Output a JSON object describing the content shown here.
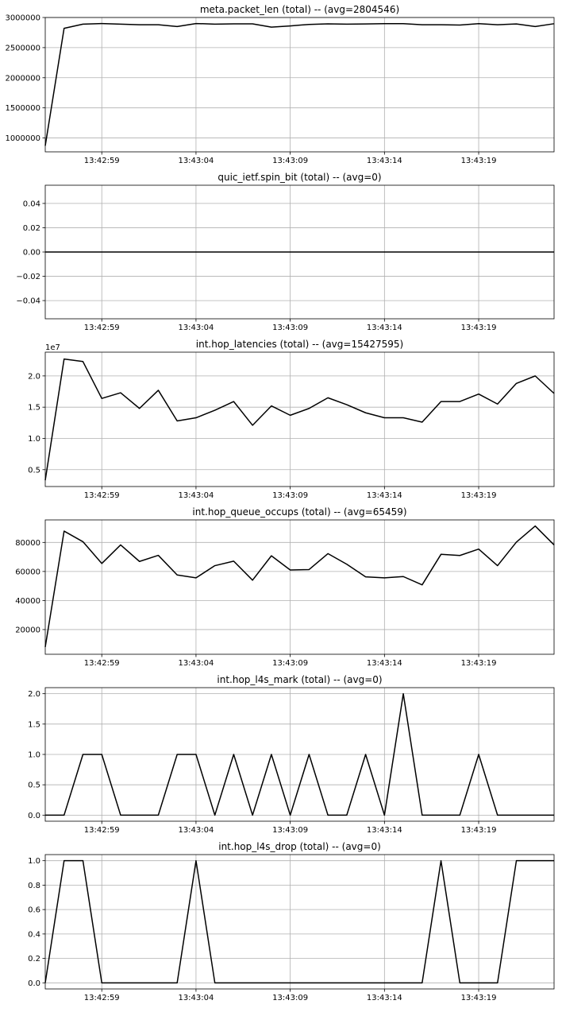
{
  "chart_data": [
    {
      "type": "line",
      "title": "meta.packet_len (total) -- (avg=2804546)",
      "x": [
        "13:42:56",
        "13:42:57",
        "13:42:58",
        "13:42:59",
        "13:43:00",
        "13:43:01",
        "13:43:02",
        "13:43:03",
        "13:43:04",
        "13:43:05",
        "13:43:06",
        "13:43:07",
        "13:43:08",
        "13:43:09",
        "13:43:10",
        "13:43:11",
        "13:43:12",
        "13:43:13",
        "13:43:14",
        "13:43:15",
        "13:43:16",
        "13:43:17",
        "13:43:18",
        "13:43:19",
        "13:43:20",
        "13:43:21",
        "13:43:22",
        "13:43:23"
      ],
      "series": [
        {
          "values": [
            870000,
            2820000,
            2890000,
            2900000,
            2890000,
            2880000,
            2880000,
            2850000,
            2900000,
            2890000,
            2895000,
            2895000,
            2840000,
            2860000,
            2885000,
            2895000,
            2890000,
            2893000,
            2897000,
            2897000,
            2880000,
            2880000,
            2875000,
            2897000,
            2880000,
            2893000,
            2850000,
            2897000
          ]
        }
      ],
      "xticks": [
        "13:42:59",
        "13:43:04",
        "13:43:09",
        "13:43:14",
        "13:43:19"
      ],
      "yticks": [
        "1000000",
        "1500000",
        "2000000",
        "2500000",
        "3000000"
      ],
      "ytick_values": [
        1000000,
        1500000,
        2000000,
        2500000,
        3000000
      ],
      "ylim": [
        770000,
        3000000
      ],
      "offset_text": "",
      "grid": true,
      "line_color": "#000000"
    },
    {
      "type": "line",
      "title": "quic_ietf.spin_bit (total) -- (avg=0)",
      "x": [
        "13:42:56",
        "13:42:57",
        "13:42:58",
        "13:42:59",
        "13:43:00",
        "13:43:01",
        "13:43:02",
        "13:43:03",
        "13:43:04",
        "13:43:05",
        "13:43:06",
        "13:43:07",
        "13:43:08",
        "13:43:09",
        "13:43:10",
        "13:43:11",
        "13:43:12",
        "13:43:13",
        "13:43:14",
        "13:43:15",
        "13:43:16",
        "13:43:17",
        "13:43:18",
        "13:43:19",
        "13:43:20",
        "13:43:21",
        "13:43:22",
        "13:43:23"
      ],
      "series": [
        {
          "values": [
            0,
            0,
            0,
            0,
            0,
            0,
            0,
            0,
            0,
            0,
            0,
            0,
            0,
            0,
            0,
            0,
            0,
            0,
            0,
            0,
            0,
            0,
            0,
            0,
            0,
            0,
            0,
            0
          ]
        }
      ],
      "xticks": [
        "13:42:59",
        "13:43:04",
        "13:43:09",
        "13:43:14",
        "13:43:19"
      ],
      "yticks": [
        "−0.04",
        "−0.02",
        "0.00",
        "0.02",
        "0.04"
      ],
      "ytick_values": [
        -0.04,
        -0.02,
        0,
        0.02,
        0.04
      ],
      "ylim": [
        -0.055,
        0.055
      ],
      "offset_text": "",
      "grid": true,
      "line_color": "#000000"
    },
    {
      "type": "line",
      "title": "int.hop_latencies (total) -- (avg=15427595)",
      "x": [
        "13:42:56",
        "13:42:57",
        "13:42:58",
        "13:42:59",
        "13:43:00",
        "13:43:01",
        "13:43:02",
        "13:43:03",
        "13:43:04",
        "13:43:05",
        "13:43:06",
        "13:43:07",
        "13:43:08",
        "13:43:09",
        "13:43:10",
        "13:43:11",
        "13:43:12",
        "13:43:13",
        "13:43:14",
        "13:43:15",
        "13:43:16",
        "13:43:17",
        "13:43:18",
        "13:43:19",
        "13:43:20",
        "13:43:21",
        "13:43:22",
        "13:43:23"
      ],
      "series": [
        {
          "values": [
            3300000,
            22700000,
            22300000,
            16400000,
            17300000,
            14800000,
            17700000,
            12800000,
            13300000,
            14500000,
            15900000,
            12100000,
            15200000,
            13700000,
            14800000,
            16500000,
            15400000,
            14100000,
            13300000,
            13300000,
            12600000,
            15900000,
            15900000,
            17100000,
            15500000,
            18800000,
            20000000,
            17200000
          ]
        }
      ],
      "xticks": [
        "13:42:59",
        "13:43:04",
        "13:43:09",
        "13:43:14",
        "13:43:19"
      ],
      "yticks": [
        "0.5",
        "1.0",
        "1.5",
        "2.0"
      ],
      "ytick_values": [
        5000000,
        10000000,
        15000000,
        20000000
      ],
      "ylim": [
        2300000,
        23800000
      ],
      "offset_text": "1e7",
      "grid": true,
      "line_color": "#000000"
    },
    {
      "type": "line",
      "title": "int.hop_queue_occups (total) -- (avg=65459)",
      "x": [
        "13:42:56",
        "13:42:57",
        "13:42:58",
        "13:42:59",
        "13:43:00",
        "13:43:01",
        "13:43:02",
        "13:43:03",
        "13:43:04",
        "13:43:05",
        "13:43:06",
        "13:43:07",
        "13:43:08",
        "13:43:09",
        "13:43:10",
        "13:43:11",
        "13:43:12",
        "13:43:13",
        "13:43:14",
        "13:43:15",
        "13:43:16",
        "13:43:17",
        "13:43:18",
        "13:43:19",
        "13:43:20",
        "13:43:21",
        "13:43:22",
        "13:43:23"
      ],
      "series": [
        {
          "values": [
            8000,
            87800,
            80500,
            65500,
            78300,
            66900,
            71100,
            57600,
            55600,
            64000,
            67100,
            54000,
            70800,
            61000,
            61300,
            72300,
            65000,
            56300,
            55600,
            56500,
            50800,
            71800,
            71000,
            75400,
            64000,
            80200,
            91300,
            78300
          ]
        }
      ],
      "xticks": [
        "13:42:59",
        "13:43:04",
        "13:43:09",
        "13:43:14",
        "13:43:19"
      ],
      "yticks": [
        "20000",
        "40000",
        "60000",
        "80000"
      ],
      "ytick_values": [
        20000,
        40000,
        60000,
        80000
      ],
      "ylim": [
        3000,
        95500
      ],
      "offset_text": "",
      "grid": true,
      "line_color": "#000000"
    },
    {
      "type": "line",
      "title": "int.hop_l4s_mark (total) -- (avg=0)",
      "x": [
        "13:42:56",
        "13:42:57",
        "13:42:58",
        "13:42:59",
        "13:43:00",
        "13:43:01",
        "13:43:02",
        "13:43:03",
        "13:43:04",
        "13:43:05",
        "13:43:06",
        "13:43:07",
        "13:43:08",
        "13:43:09",
        "13:43:10",
        "13:43:11",
        "13:43:12",
        "13:43:13",
        "13:43:14",
        "13:43:15",
        "13:43:16",
        "13:43:17",
        "13:43:18",
        "13:43:19",
        "13:43:20",
        "13:43:21",
        "13:43:22",
        "13:43:23"
      ],
      "series": [
        {
          "values": [
            0,
            0,
            1,
            1,
            0,
            0,
            0,
            1,
            1,
            0,
            1,
            0,
            1,
            0,
            1,
            0,
            0,
            1,
            0,
            2,
            0,
            0,
            0,
            1,
            0,
            0,
            0,
            0
          ]
        }
      ],
      "xticks": [
        "13:42:59",
        "13:43:04",
        "13:43:09",
        "13:43:14",
        "13:43:19"
      ],
      "yticks": [
        "0.0",
        "0.5",
        "1.0",
        "1.5",
        "2.0"
      ],
      "ytick_values": [
        0,
        0.5,
        1,
        1.5,
        2
      ],
      "ylim": [
        -0.1,
        2.1
      ],
      "offset_text": "",
      "grid": true,
      "line_color": "#000000"
    },
    {
      "type": "line",
      "title": "int.hop_l4s_drop (total) -- (avg=0)",
      "x": [
        "13:42:56",
        "13:42:57",
        "13:42:58",
        "13:42:59",
        "13:43:00",
        "13:43:01",
        "13:43:02",
        "13:43:03",
        "13:43:04",
        "13:43:05",
        "13:43:06",
        "13:43:07",
        "13:43:08",
        "13:43:09",
        "13:43:10",
        "13:43:11",
        "13:43:12",
        "13:43:13",
        "13:43:14",
        "13:43:15",
        "13:43:16",
        "13:43:17",
        "13:43:18",
        "13:43:19",
        "13:43:20",
        "13:43:21",
        "13:43:22",
        "13:43:23"
      ],
      "series": [
        {
          "values": [
            0,
            1,
            1,
            0,
            0,
            0,
            0,
            0,
            1,
            0,
            0,
            0,
            0,
            0,
            0,
            0,
            0,
            0,
            0,
            0,
            0,
            1,
            0,
            0,
            0,
            1,
            1,
            1
          ]
        }
      ],
      "xticks": [
        "13:42:59",
        "13:43:04",
        "13:43:09",
        "13:43:14",
        "13:43:19"
      ],
      "yticks": [
        "0.0",
        "0.2",
        "0.4",
        "0.6",
        "0.8",
        "1.0"
      ],
      "ytick_values": [
        0,
        0.2,
        0.4,
        0.6,
        0.8,
        1
      ],
      "ylim": [
        -0.05,
        1.05
      ],
      "offset_text": "",
      "grid": true,
      "line_color": "#000000"
    }
  ]
}
